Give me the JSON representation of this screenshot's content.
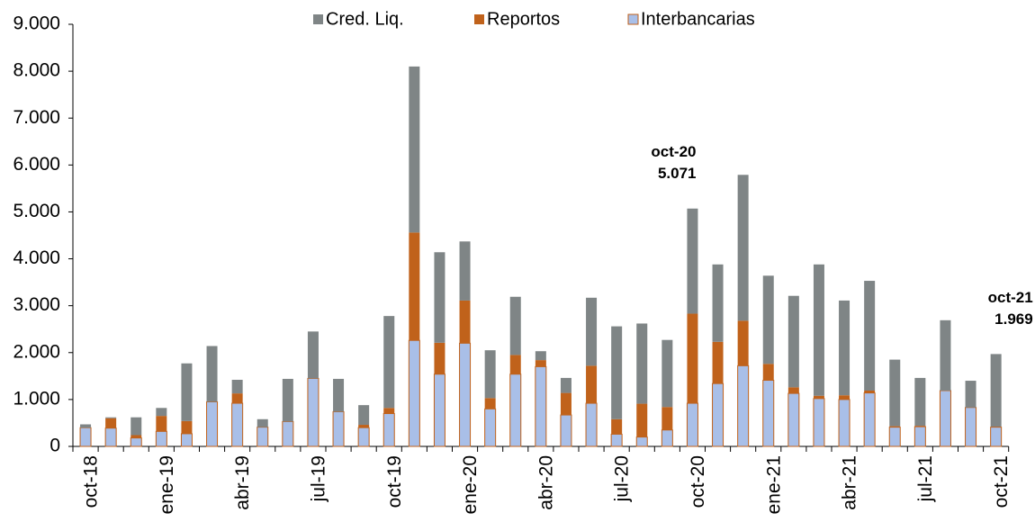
{
  "chart_data": {
    "type": "stacked_bar",
    "categories": [
      "oct-18",
      null,
      null,
      "ene-19",
      null,
      null,
      "abr-19",
      null,
      null,
      "jul-19",
      null,
      null,
      "oct-19",
      null,
      null,
      "ene-20",
      null,
      null,
      "abr-20",
      null,
      null,
      "jul-20",
      null,
      null,
      "oct-20",
      null,
      null,
      "ene-21",
      null,
      null,
      "abr-21",
      null,
      null,
      "jul-21",
      null,
      null,
      "oct-21"
    ],
    "series": [
      {
        "name": "Interbancarias",
        "color": "#a9bfe8",
        "values": [
          400,
          390,
          180,
          320,
          270,
          950,
          920,
          410,
          530,
          1450,
          740,
          400,
          700,
          2260,
          1540,
          2200,
          800,
          1540,
          1700,
          670,
          920,
          260,
          200,
          350,
          920,
          1340,
          1720,
          1410,
          1130,
          1020,
          1000,
          1140,
          410,
          420,
          1190,
          830,
          410
        ]
      },
      {
        "name": "Reportos",
        "color": "#c0621b",
        "values": [
          0,
          210,
          60,
          330,
          270,
          0,
          210,
          0,
          0,
          0,
          0,
          60,
          120,
          2300,
          670,
          910,
          230,
          410,
          140,
          470,
          800,
          320,
          710,
          490,
          1910,
          890,
          960,
          350,
          130,
          60,
          90,
          50,
          20,
          20,
          0,
          0,
          10
        ]
      },
      {
        "name": "Cred. Liq.",
        "color": "#7f8586",
        "values": [
          70,
          20,
          380,
          170,
          1230,
          1190,
          290,
          170,
          910,
          1000,
          700,
          420,
          1960,
          3540,
          1930,
          1260,
          1020,
          1240,
          190,
          320,
          1450,
          1980,
          1710,
          1430,
          2241,
          1650,
          3110,
          1880,
          1950,
          2800,
          2020,
          2340,
          1420,
          1020,
          1500,
          570,
          1549
        ]
      }
    ],
    "ylim": [
      0,
      9000
    ],
    "yticks": [
      0,
      {
        "value": 1000,
        "label": "1.000"
      },
      {
        "value": 2000,
        "label": "2.000"
      },
      {
        "value": 3000,
        "label": "3.000"
      },
      {
        "value": 4000,
        "label": "4.000"
      },
      {
        "value": 5000,
        "label": "5.000"
      },
      {
        "value": 6000,
        "label": "6.000"
      },
      {
        "value": 7000,
        "label": "7.000"
      },
      {
        "value": 8000,
        "label": "8.000"
      },
      {
        "value": 9000,
        "label": "9.000"
      }
    ],
    "legend": "top",
    "annotations": [
      {
        "label": "oct-20",
        "value": 5071,
        "value_label": "5.071"
      },
      {
        "label": "oct-21",
        "value": 1969,
        "value_label": "1.969"
      }
    ]
  }
}
